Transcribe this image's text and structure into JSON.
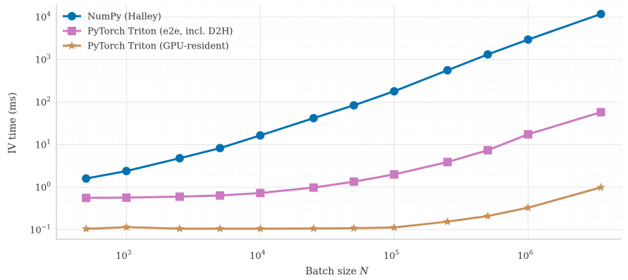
{
  "chart_data": {
    "type": "line",
    "title": "",
    "xlabel": "Batch size",
    "xlabel_var": "N",
    "ylabel": "IV time (ms)",
    "x_scale": "log",
    "y_scale": "log",
    "xlim": [
      300,
      5000000
    ],
    "ylim": [
      0.06,
      20000
    ],
    "x_ticks": [
      {
        "value": 1000,
        "base": "10",
        "exp": "3"
      },
      {
        "value": 10000,
        "base": "10",
        "exp": "4"
      },
      {
        "value": 100000,
        "base": "10",
        "exp": "5"
      },
      {
        "value": 1000000,
        "base": "10",
        "exp": "6"
      }
    ],
    "y_ticks": [
      {
        "value": 0.1,
        "base": "10",
        "exp": "−1"
      },
      {
        "value": 1,
        "base": "10",
        "exp": "0"
      },
      {
        "value": 10,
        "base": "10",
        "exp": "1"
      },
      {
        "value": 100,
        "base": "10",
        "exp": "2"
      },
      {
        "value": 1000,
        "base": "10",
        "exp": "3"
      },
      {
        "value": 10000,
        "base": "10",
        "exp": "4"
      }
    ],
    "grid": true,
    "legend_position": "top-left",
    "x": [
      500,
      1000,
      2500,
      5000,
      10000,
      25000,
      50000,
      100000,
      250000,
      500000,
      1000000,
      3500000
    ],
    "series": [
      {
        "name": "NumPy (Halley)",
        "color": "#0072b2",
        "marker": "circle",
        "values": [
          1.6,
          2.4,
          4.8,
          8.3,
          16.5,
          42,
          84,
          180,
          560,
          1320,
          2950,
          11800
        ]
      },
      {
        "name": "PyTorch Triton (e2e, incl. D2H)",
        "color": "#cc79c0",
        "marker": "square",
        "values": [
          0.56,
          0.57,
          0.6,
          0.64,
          0.73,
          0.98,
          1.35,
          2.0,
          3.9,
          7.4,
          17.5,
          58
        ]
      },
      {
        "name": "PyTorch Triton (GPU-resident)",
        "color": "#c8915a",
        "marker": "star",
        "values": [
          0.105,
          0.115,
          0.106,
          0.106,
          0.106,
          0.107,
          0.109,
          0.113,
          0.155,
          0.21,
          0.33,
          0.99
        ]
      }
    ]
  }
}
